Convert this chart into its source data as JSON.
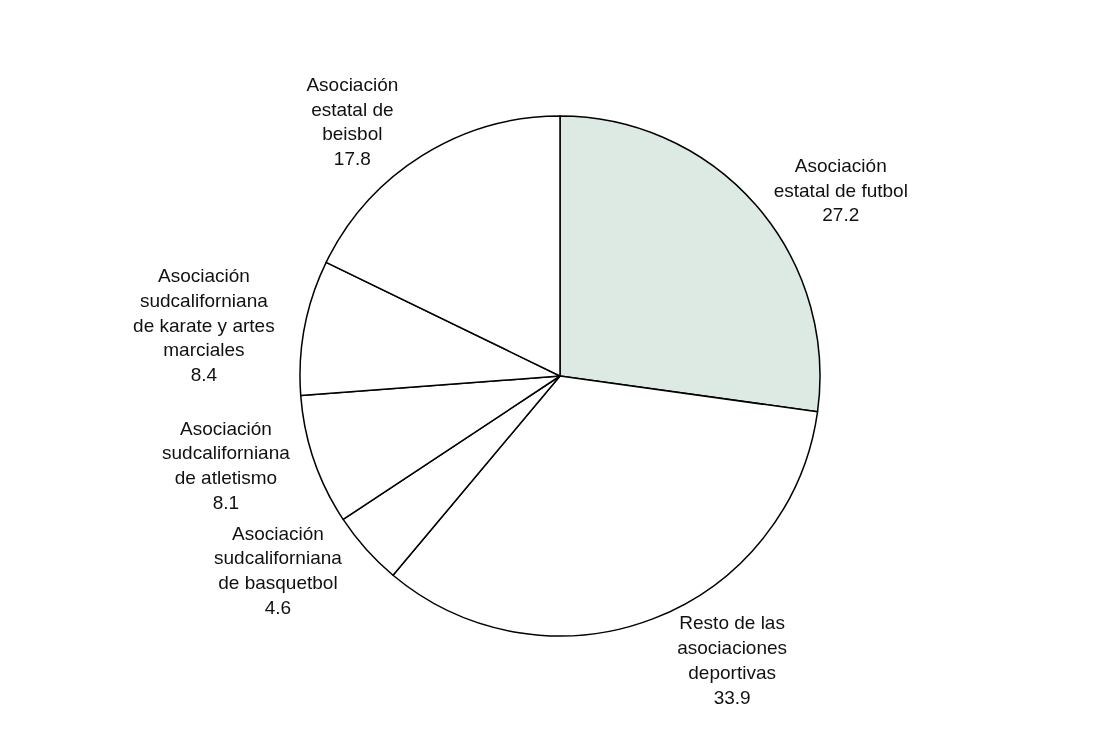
{
  "chart_data": {
    "type": "pie",
    "categories": [
      "Asociación estatal de futbol",
      "Resto de las asociaciones deportivas",
      "Asociación sudcaliforniana de basquetbol",
      "Asociación sudcaliforniana de atletismo",
      "Asociación sudcaliforniana de karate y artes marciales",
      "Asociación estatal de beisbol"
    ],
    "values": [
      27.2,
      33.9,
      4.6,
      8.1,
      8.4,
      17.8
    ],
    "colors": [
      "#dde9e3",
      "#ffffff",
      "#ffffff",
      "#ffffff",
      "#ffffff",
      "#ffffff"
    ],
    "data_labels": true,
    "legend": false
  }
}
